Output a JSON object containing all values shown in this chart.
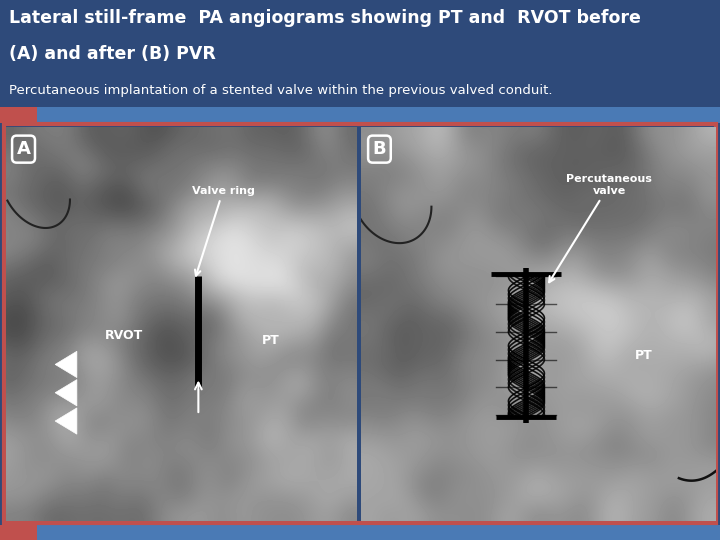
{
  "title_line1": "Lateral still-frame  PA angiograms showing PT and  RVOT before",
  "title_line2": "(A) and after (B) PVR",
  "subtitle": "Percutaneous implantation of a stented valve within the previous valved conduit.",
  "bg_title_color": "#2E4A7A",
  "bg_strip1_color": "#C0504D",
  "bg_strip2_color": "#4A7AB5",
  "title_font_size": 12.5,
  "subtitle_font_size": 9.5,
  "panel_A_label": "A",
  "panel_B_label": "B",
  "label_RVOT": "RVOT",
  "label_PT_A": "PT",
  "label_PT_B": "PT",
  "label_valve_ring": "Valve ring",
  "label_percutaneous_valve": "Percutaneous\nvalve",
  "border_outer_color": "#C0504D",
  "border_inner_color": "#2E4A7A"
}
